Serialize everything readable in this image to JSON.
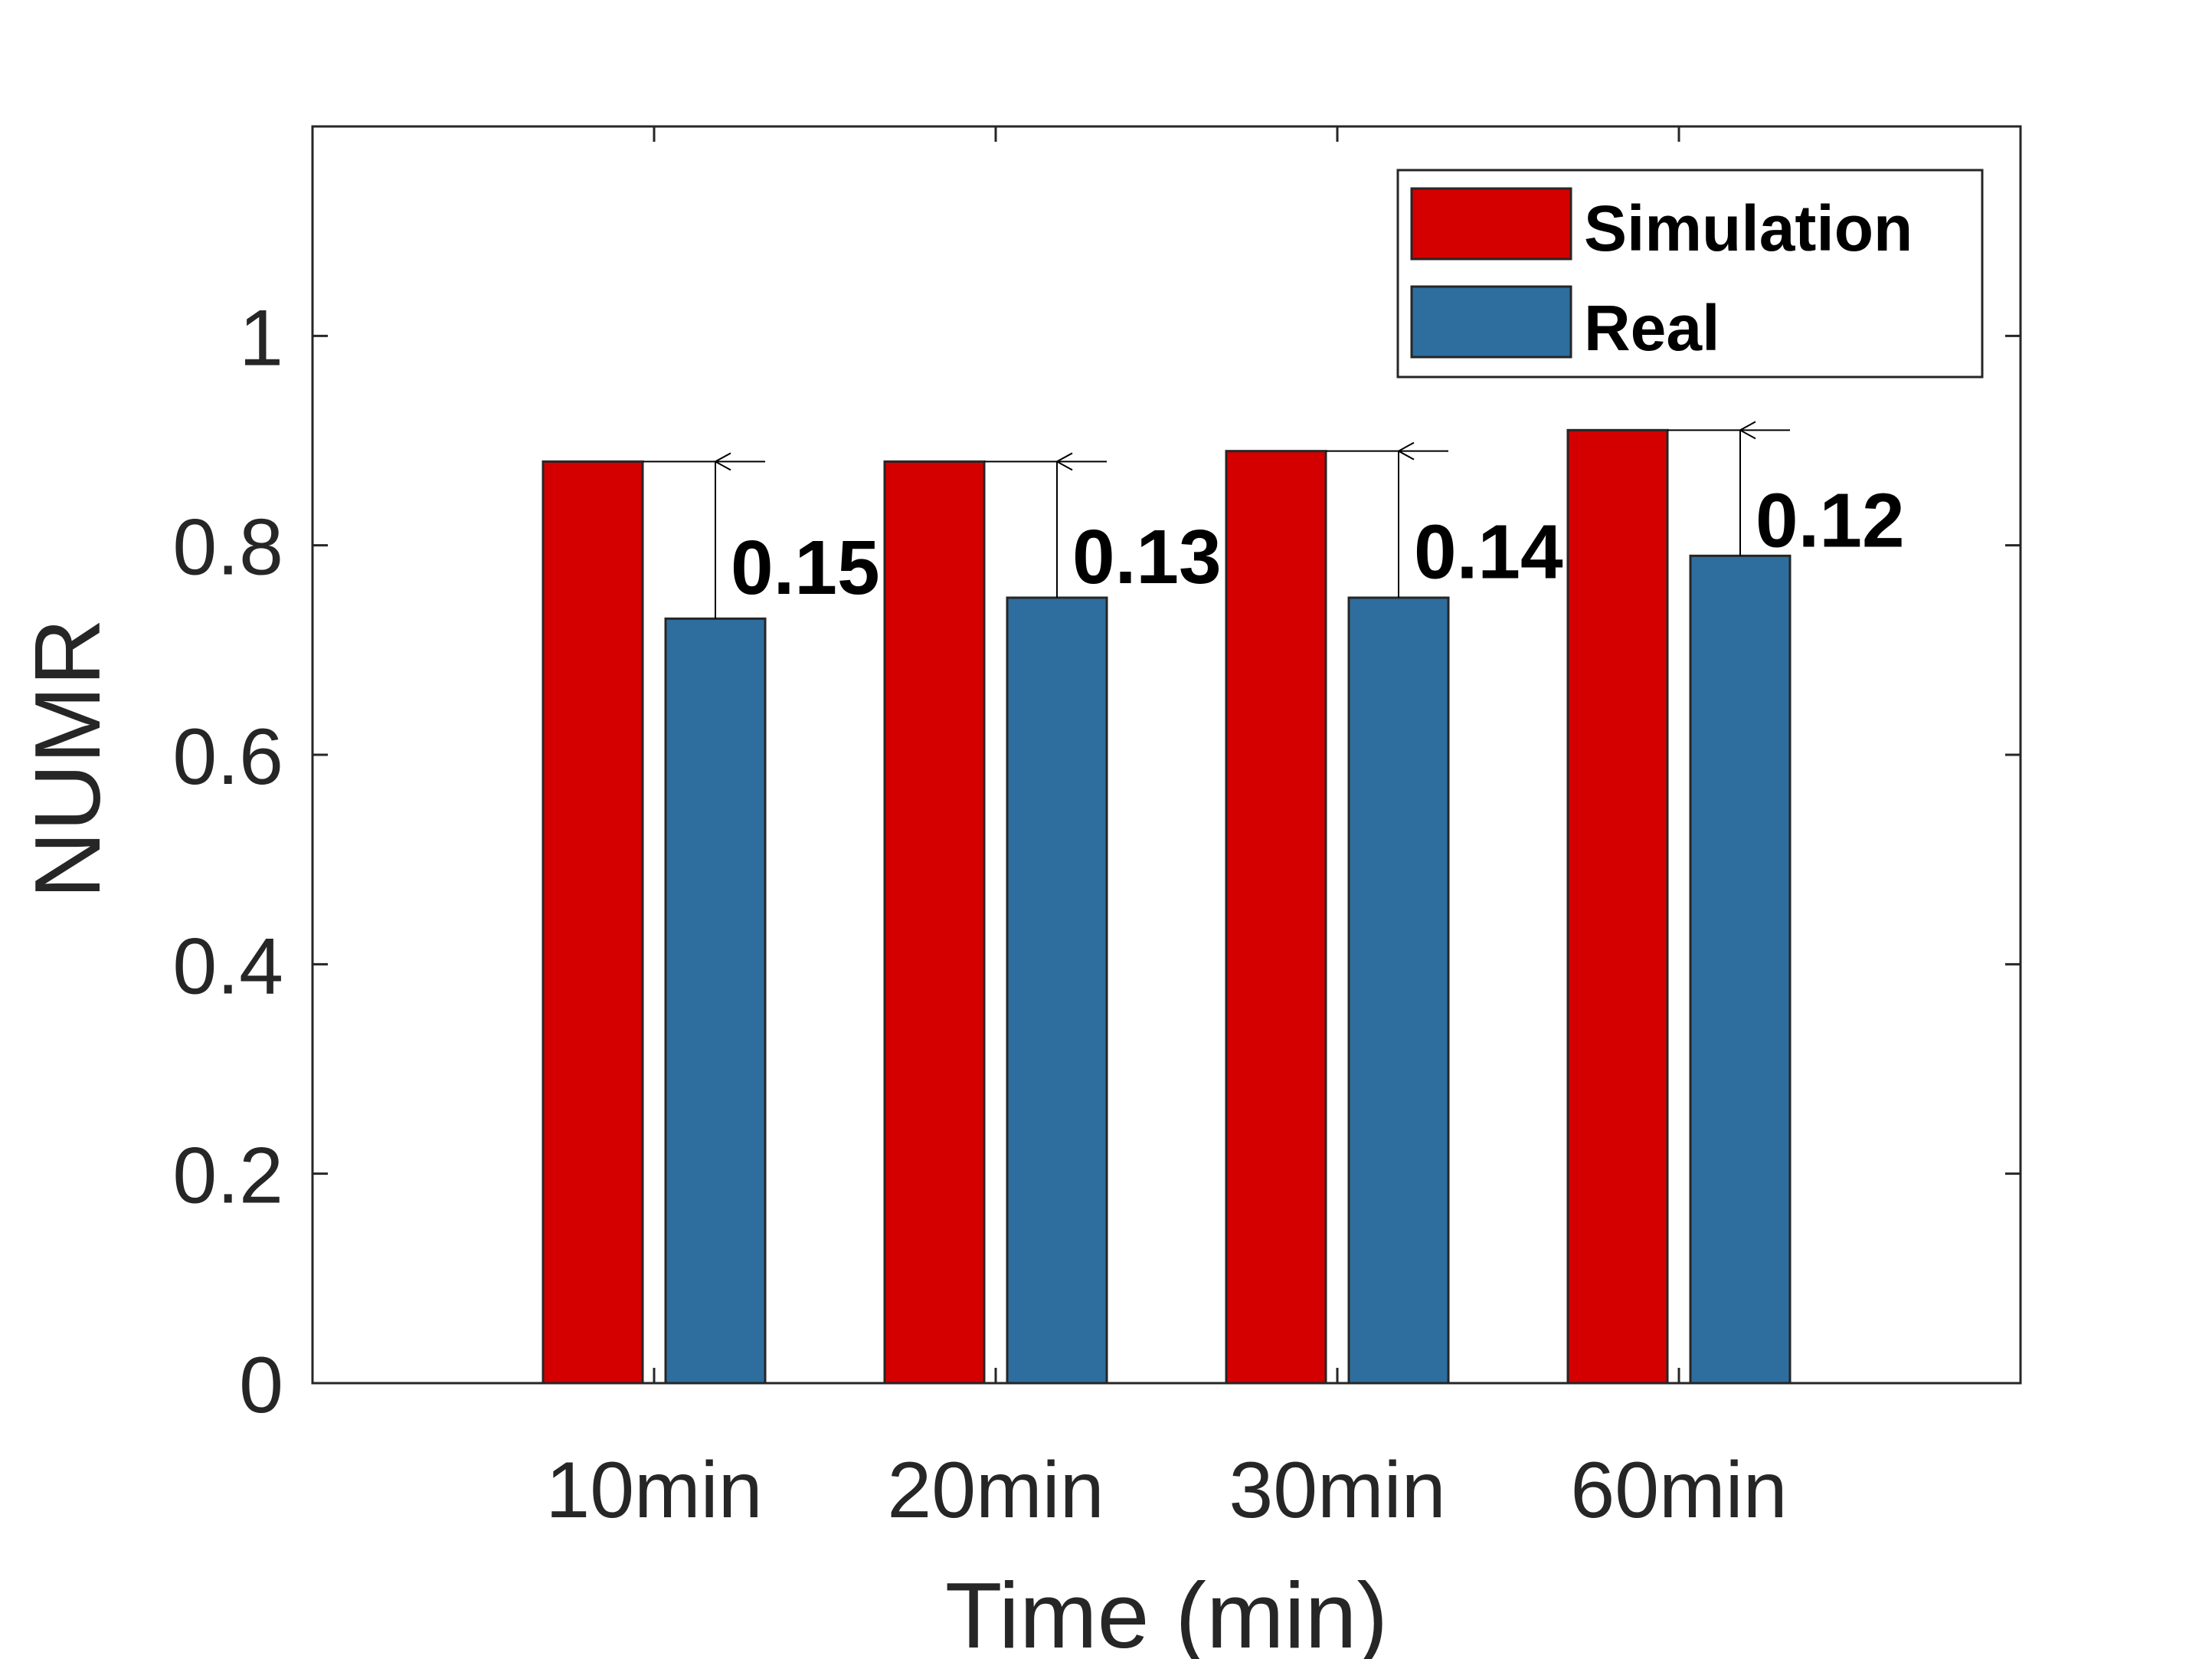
{
  "chart_data": {
    "type": "bar",
    "title": "",
    "xlabel": "Time (min)",
    "ylabel": "NUMR",
    "categories": [
      "10min",
      "20min",
      "30min",
      "60min"
    ],
    "series": [
      {
        "name": "Simulation",
        "color": "#d40000",
        "values": [
          0.88,
          0.88,
          0.89,
          0.91
        ]
      },
      {
        "name": "Real",
        "color": "#2e6e9e",
        "values": [
          0.73,
          0.75,
          0.75,
          0.79
        ]
      }
    ],
    "annotations": [
      "0.15",
      "0.13",
      "0.14",
      "0.12"
    ],
    "ylim": [
      0,
      1.2
    ],
    "yticks": [
      0,
      0.2,
      0.4,
      0.6,
      0.8,
      1
    ],
    "ytick_labels": [
      "0",
      "0.2",
      "0.4",
      "0.6",
      "0.8",
      "1"
    ],
    "legend_position": "top-right",
    "grid": false
  }
}
